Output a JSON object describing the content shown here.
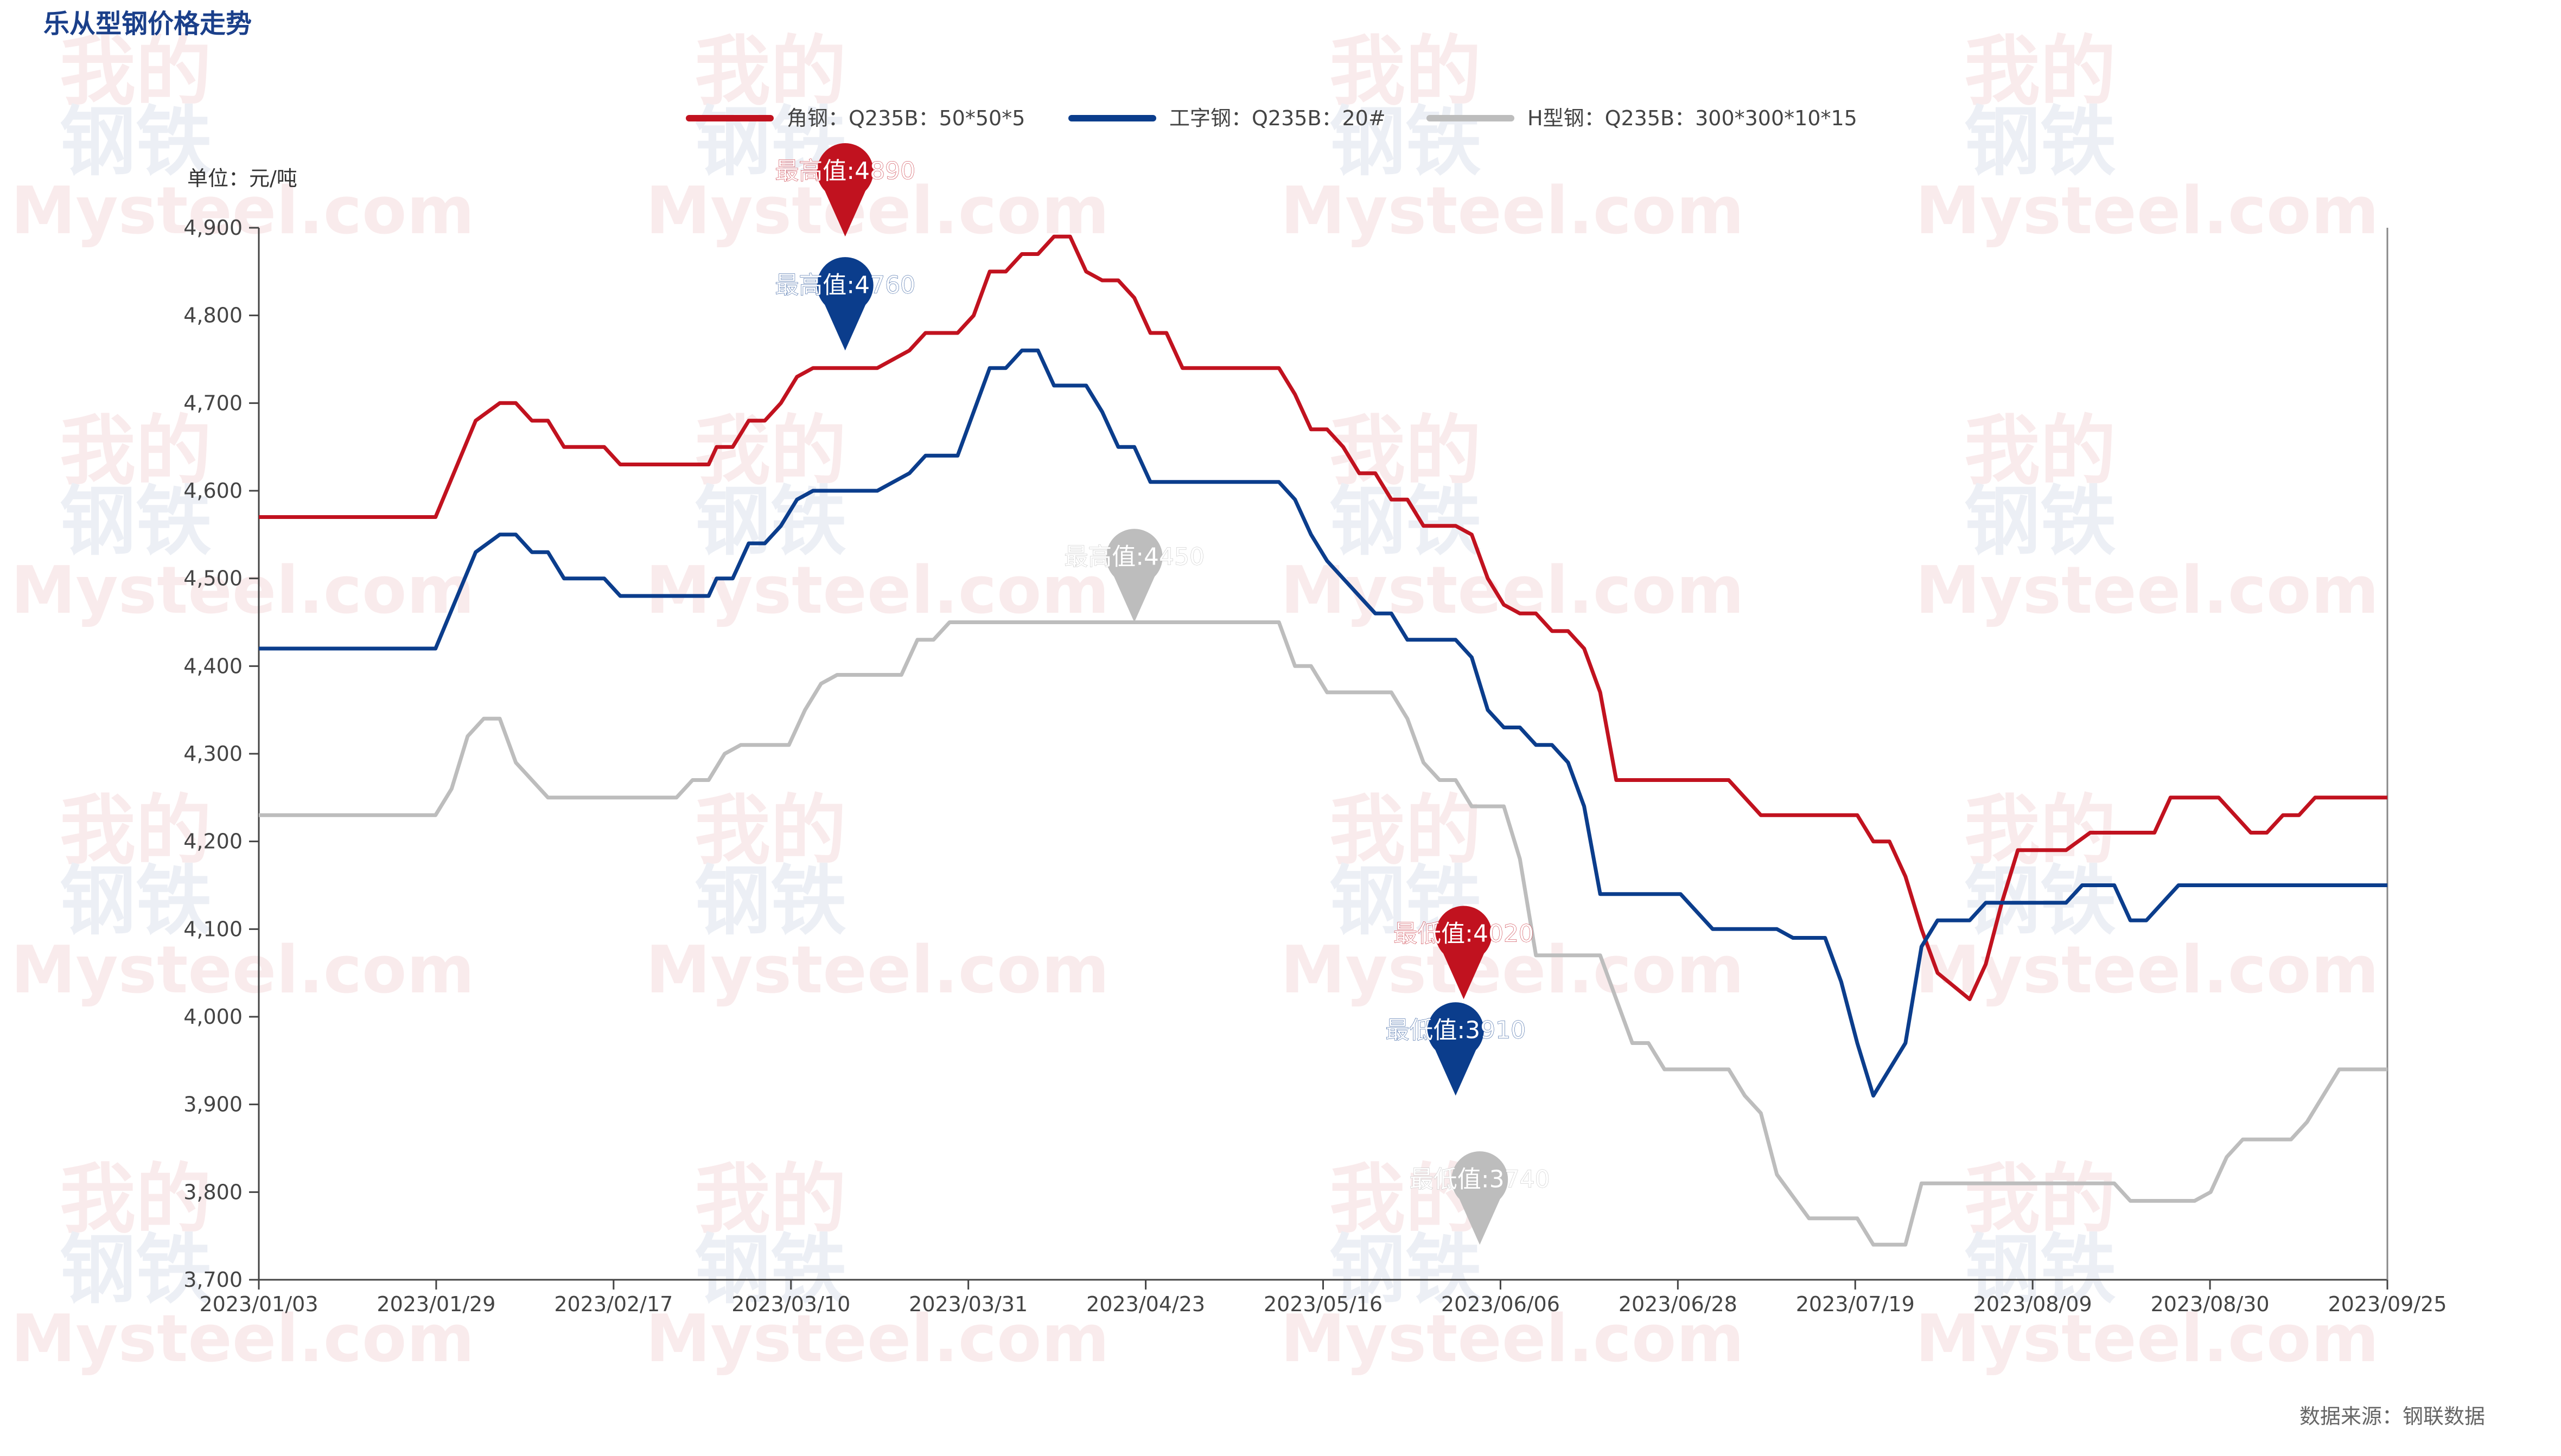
{
  "chart_data": {
    "type": "line",
    "title": "乐从型钢价格走势",
    "unit_label": "单位：元/吨",
    "source_label": "数据来源：钢联数据",
    "watermark": "我的钢铁 Mysteel.com",
    "legend_position": "top",
    "grid": false,
    "ylim": [
      3700,
      4900
    ],
    "yticks": [
      "4,900",
      "4,800",
      "4,700",
      "4,600",
      "4,500",
      "4,400",
      "4,300",
      "4,200",
      "4,100",
      "4,000",
      "3,900",
      "3,800",
      "3,700"
    ],
    "xlim": [
      "2023/01/03",
      "2023/09/25"
    ],
    "xticks": [
      "2023/01/03",
      "2023/01/29",
      "2023/02/17",
      "2023/03/10",
      "2023/03/31",
      "2023/04/23",
      "2023/05/16",
      "2023/06/06",
      "2023/06/28",
      "2023/07/19",
      "2023/08/09",
      "2023/08/30",
      "2023/09/25"
    ],
    "series": [
      {
        "name": "角钢：Q235B：50*50*5",
        "color": "#c1121f",
        "max_label": "最高值:4890",
        "min_label": "最低值:4020",
        "max": {
          "x": "2023/03/17",
          "y": 4890
        },
        "min": {
          "x": "2023/06/02",
          "y": 4020
        },
        "points": [
          [
            "2023/01/03",
            4570
          ],
          [
            "2023/01/25",
            4570
          ],
          [
            "2023/01/30",
            4680
          ],
          [
            "2023/02/02",
            4700
          ],
          [
            "2023/02/04",
            4700
          ],
          [
            "2023/02/06",
            4680
          ],
          [
            "2023/02/08",
            4680
          ],
          [
            "2023/02/10",
            4650
          ],
          [
            "2023/02/15",
            4650
          ],
          [
            "2023/02/17",
            4630
          ],
          [
            "2023/02/28",
            4630
          ],
          [
            "2023/03/01",
            4650
          ],
          [
            "2023/03/03",
            4650
          ],
          [
            "2023/03/05",
            4680
          ],
          [
            "2023/03/07",
            4680
          ],
          [
            "2023/03/09",
            4700
          ],
          [
            "2023/03/11",
            4730
          ],
          [
            "2023/03/13",
            4740
          ],
          [
            "2023/03/21",
            4740
          ],
          [
            "2023/03/23",
            4750
          ],
          [
            "2023/03/25",
            4760
          ],
          [
            "2023/03/27",
            4780
          ],
          [
            "2023/03/31",
            4780
          ],
          [
            "2023/04/02",
            4800
          ],
          [
            "2023/04/04",
            4850
          ],
          [
            "2023/04/06",
            4850
          ],
          [
            "2023/04/08",
            4870
          ],
          [
            "2023/04/10",
            4870
          ],
          [
            "2023/04/12",
            4890
          ],
          [
            "2023/04/14",
            4890
          ],
          [
            "2023/04/16",
            4850
          ],
          [
            "2023/04/18",
            4840
          ],
          [
            "2023/04/20",
            4840
          ],
          [
            "2023/04/22",
            4820
          ],
          [
            "2023/04/24",
            4780
          ],
          [
            "2023/04/26",
            4780
          ],
          [
            "2023/04/28",
            4740
          ],
          [
            "2023/05/10",
            4740
          ],
          [
            "2023/05/12",
            4710
          ],
          [
            "2023/05/14",
            4670
          ],
          [
            "2023/05/16",
            4670
          ],
          [
            "2023/05/18",
            4650
          ],
          [
            "2023/05/20",
            4620
          ],
          [
            "2023/05/22",
            4620
          ],
          [
            "2023/05/24",
            4590
          ],
          [
            "2023/05/26",
            4590
          ],
          [
            "2023/05/28",
            4560
          ],
          [
            "2023/06/01",
            4560
          ],
          [
            "2023/06/03",
            4550
          ],
          [
            "2023/06/05",
            4500
          ],
          [
            "2023/06/07",
            4470
          ],
          [
            "2023/06/09",
            4460
          ],
          [
            "2023/06/11",
            4460
          ],
          [
            "2023/06/13",
            4440
          ],
          [
            "2023/06/15",
            4440
          ],
          [
            "2023/06/17",
            4420
          ],
          [
            "2023/06/19",
            4370
          ],
          [
            "2023/06/21",
            4270
          ],
          [
            "2023/07/05",
            4270
          ],
          [
            "2023/07/09",
            4230
          ],
          [
            "2023/07/21",
            4230
          ],
          [
            "2023/07/23",
            4200
          ],
          [
            "2023/07/25",
            4200
          ],
          [
            "2023/07/27",
            4160
          ],
          [
            "2023/07/29",
            4100
          ],
          [
            "2023/07/31",
            4050
          ],
          [
            "2023/08/04",
            4020
          ],
          [
            "2023/08/06",
            4060
          ],
          [
            "2023/08/08",
            4130
          ],
          [
            "2023/08/10",
            4190
          ],
          [
            "2023/08/16",
            4190
          ],
          [
            "2023/08/19",
            4210
          ],
          [
            "2023/08/27",
            4210
          ],
          [
            "2023/08/29",
            4250
          ],
          [
            "2023/09/04",
            4250
          ],
          [
            "2023/09/08",
            4210
          ],
          [
            "2023/09/10",
            4210
          ],
          [
            "2023/09/12",
            4230
          ],
          [
            "2023/09/14",
            4230
          ],
          [
            "2023/09/16",
            4250
          ],
          [
            "2023/09/25",
            4250
          ]
        ]
      },
      {
        "name": "工字钢：Q235B：20#",
        "color": "#0b3d8c",
        "max_label": "最高值:4760",
        "min_label": "最低值:3910",
        "max": {
          "x": "2023/03/17",
          "y": 4760
        },
        "min": {
          "x": "2023/06/01",
          "y": 3910
        },
        "points": [
          [
            "2023/01/03",
            4420
          ],
          [
            "2023/01/25",
            4420
          ],
          [
            "2023/01/30",
            4530
          ],
          [
            "2023/02/02",
            4550
          ],
          [
            "2023/02/04",
            4550
          ],
          [
            "2023/02/06",
            4530
          ],
          [
            "2023/02/08",
            4530
          ],
          [
            "2023/02/10",
            4500
          ],
          [
            "2023/02/15",
            4500
          ],
          [
            "2023/02/17",
            4480
          ],
          [
            "2023/02/28",
            4480
          ],
          [
            "2023/03/01",
            4500
          ],
          [
            "2023/03/03",
            4500
          ],
          [
            "2023/03/05",
            4540
          ],
          [
            "2023/03/07",
            4540
          ],
          [
            "2023/03/09",
            4560
          ],
          [
            "2023/03/11",
            4590
          ],
          [
            "2023/03/13",
            4600
          ],
          [
            "2023/03/21",
            4600
          ],
          [
            "2023/03/23",
            4610
          ],
          [
            "2023/03/25",
            4620
          ],
          [
            "2023/03/27",
            4640
          ],
          [
            "2023/03/31",
            4640
          ],
          [
            "2023/04/02",
            4690
          ],
          [
            "2023/04/04",
            4740
          ],
          [
            "2023/04/06",
            4740
          ],
          [
            "2023/04/08",
            4760
          ],
          [
            "2023/04/10",
            4760
          ],
          [
            "2023/04/12",
            4720
          ],
          [
            "2023/04/16",
            4720
          ],
          [
            "2023/04/18",
            4690
          ],
          [
            "2023/04/20",
            4650
          ],
          [
            "2023/04/22",
            4650
          ],
          [
            "2023/04/24",
            4610
          ],
          [
            "2023/05/10",
            4610
          ],
          [
            "2023/05/12",
            4590
          ],
          [
            "2023/05/14",
            4550
          ],
          [
            "2023/05/16",
            4520
          ],
          [
            "2023/05/18",
            4500
          ],
          [
            "2023/05/20",
            4480
          ],
          [
            "2023/05/22",
            4460
          ],
          [
            "2023/05/24",
            4460
          ],
          [
            "2023/05/26",
            4430
          ],
          [
            "2023/06/01",
            4430
          ],
          [
            "2023/06/03",
            4410
          ],
          [
            "2023/06/05",
            4350
          ],
          [
            "2023/06/07",
            4330
          ],
          [
            "2023/06/09",
            4330
          ],
          [
            "2023/06/11",
            4310
          ],
          [
            "2023/06/13",
            4310
          ],
          [
            "2023/06/15",
            4290
          ],
          [
            "2023/06/17",
            4240
          ],
          [
            "2023/06/19",
            4140
          ],
          [
            "2023/06/29",
            4140
          ],
          [
            "2023/07/03",
            4100
          ],
          [
            "2023/07/09",
            4100
          ],
          [
            "2023/07/11",
            4100
          ],
          [
            "2023/07/13",
            4090
          ],
          [
            "2023/07/17",
            4090
          ],
          [
            "2023/07/19",
            4040
          ],
          [
            "2023/07/21",
            3970
          ],
          [
            "2023/07/23",
            3910
          ],
          [
            "2023/07/27",
            3970
          ],
          [
            "2023/07/29",
            4080
          ],
          [
            "2023/07/31",
            4110
          ],
          [
            "2023/08/04",
            4110
          ],
          [
            "2023/08/06",
            4130
          ],
          [
            "2023/08/16",
            4130
          ],
          [
            "2023/08/18",
            4150
          ],
          [
            "2023/08/22",
            4150
          ],
          [
            "2023/08/24",
            4110
          ],
          [
            "2023/08/26",
            4110
          ],
          [
            "2023/08/28",
            4130
          ],
          [
            "2023/08/30",
            4150
          ],
          [
            "2023/09/25",
            4150
          ]
        ]
      },
      {
        "name": "H型钢：Q235B：300*300*10*15",
        "color": "#bdbdbd",
        "max_label": "最高值:4450",
        "min_label": "最低值:3740",
        "max": {
          "x": "2023/04/22",
          "y": 4450
        },
        "min": {
          "x": "2023/06/04",
          "y": 3740
        },
        "points": [
          [
            "2023/01/03",
            4230
          ],
          [
            "2023/01/25",
            4230
          ],
          [
            "2023/01/27",
            4260
          ],
          [
            "2023/01/29",
            4320
          ],
          [
            "2023/01/31",
            4340
          ],
          [
            "2023/02/02",
            4340
          ],
          [
            "2023/02/04",
            4290
          ],
          [
            "2023/02/08",
            4250
          ],
          [
            "2023/02/24",
            4250
          ],
          [
            "2023/02/26",
            4270
          ],
          [
            "2023/02/28",
            4270
          ],
          [
            "2023/03/02",
            4300
          ],
          [
            "2023/03/04",
            4310
          ],
          [
            "2023/03/10",
            4310
          ],
          [
            "2023/03/12",
            4350
          ],
          [
            "2023/03/14",
            4380
          ],
          [
            "2023/03/16",
            4390
          ],
          [
            "2023/03/24",
            4390
          ],
          [
            "2023/03/26",
            4430
          ],
          [
            "2023/03/28",
            4430
          ],
          [
            "2023/03/30",
            4450
          ],
          [
            "2023/05/10",
            4450
          ],
          [
            "2023/05/12",
            4400
          ],
          [
            "2023/05/14",
            4400
          ],
          [
            "2023/05/16",
            4370
          ],
          [
            "2023/05/24",
            4370
          ],
          [
            "2023/05/26",
            4340
          ],
          [
            "2023/05/28",
            4290
          ],
          [
            "2023/05/30",
            4270
          ],
          [
            "2023/06/01",
            4270
          ],
          [
            "2023/06/03",
            4240
          ],
          [
            "2023/06/07",
            4240
          ],
          [
            "2023/06/09",
            4180
          ],
          [
            "2023/06/11",
            4070
          ],
          [
            "2023/06/19",
            4070
          ],
          [
            "2023/06/23",
            3970
          ],
          [
            "2023/06/25",
            3970
          ],
          [
            "2023/06/27",
            3940
          ],
          [
            "2023/07/05",
            3940
          ],
          [
            "2023/07/07",
            3910
          ],
          [
            "2023/07/09",
            3890
          ],
          [
            "2023/07/11",
            3820
          ],
          [
            "2023/07/15",
            3770
          ],
          [
            "2023/07/21",
            3770
          ],
          [
            "2023/07/23",
            3740
          ],
          [
            "2023/07/27",
            3740
          ],
          [
            "2023/07/29",
            3810
          ],
          [
            "2023/08/22",
            3810
          ],
          [
            "2023/08/24",
            3790
          ],
          [
            "2023/09/01",
            3790
          ],
          [
            "2023/09/03",
            3800
          ],
          [
            "2023/09/05",
            3840
          ],
          [
            "2023/09/07",
            3860
          ],
          [
            "2023/09/13",
            3860
          ],
          [
            "2023/09/15",
            3880
          ],
          [
            "2023/09/19",
            3940
          ],
          [
            "2023/09/25",
            3940
          ]
        ]
      }
    ]
  }
}
